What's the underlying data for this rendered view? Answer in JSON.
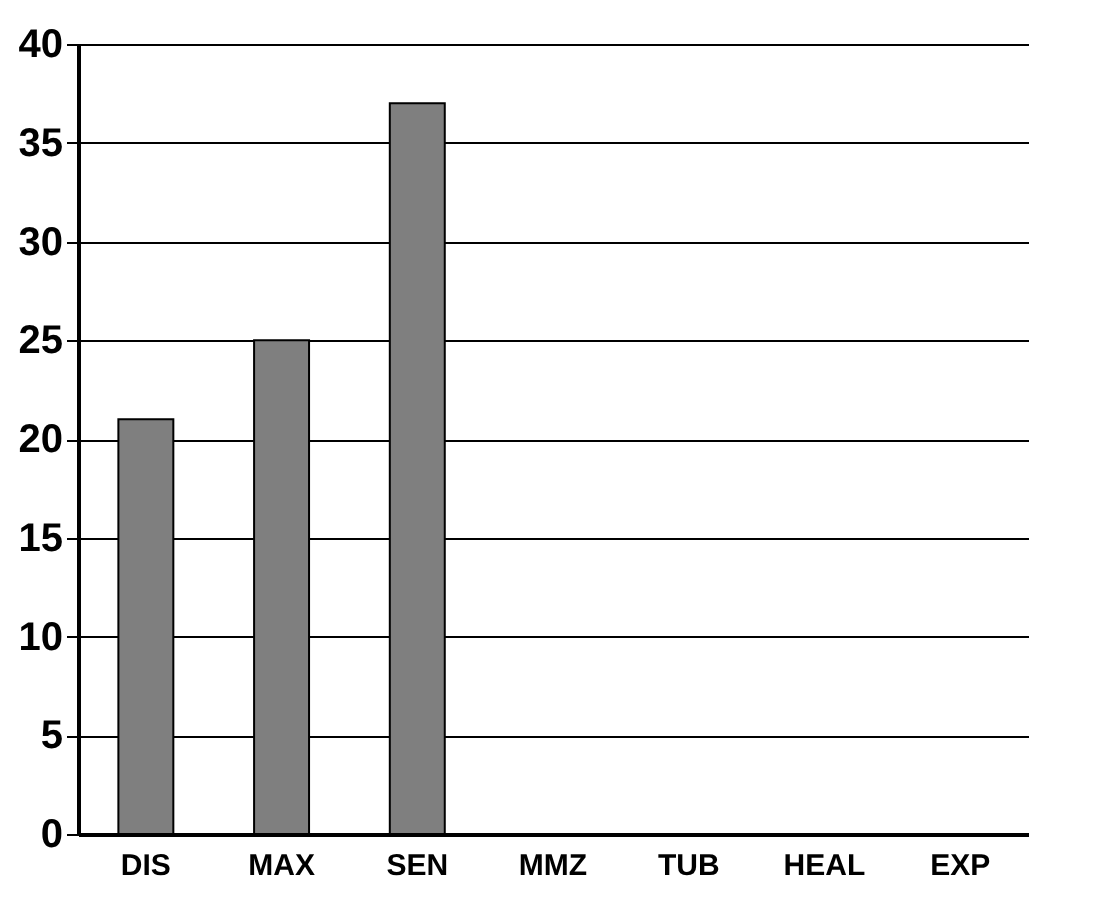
{
  "chart_data": {
    "type": "bar",
    "categories": [
      "DIS",
      "MAX",
      "SEN",
      "MMZ",
      "TUB",
      "HEAL",
      "EXP"
    ],
    "values": [
      21,
      25,
      37,
      0,
      0,
      0,
      0
    ],
    "color": "#7f7f7f",
    "ylim": [
      0,
      40
    ],
    "yticks": [
      0,
      5,
      10,
      15,
      20,
      25,
      30,
      35,
      40
    ],
    "grid": "y"
  }
}
